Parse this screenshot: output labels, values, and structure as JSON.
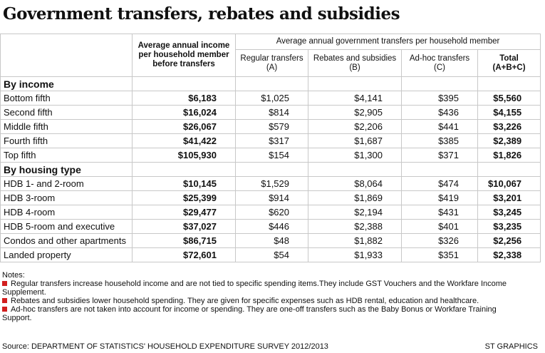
{
  "title": "Government transfers, rebates and subsidies",
  "table": {
    "header": {
      "income": [
        "Average annual income",
        "per household member",
        "before transfers"
      ],
      "group": "Average annual government transfers per household member",
      "columns": [
        [
          "Regular transfers",
          "(A)"
        ],
        [
          "Rebates and subsidies",
          "(B)"
        ],
        [
          "Ad-hoc transfers",
          "(C)"
        ],
        [
          "Total",
          "(A+B+C)"
        ]
      ]
    },
    "sections": [
      {
        "label": "By income",
        "rows": [
          [
            "Bottom fifth",
            "$6,183",
            "$1,025",
            "$4,141",
            "$395",
            "$5,560"
          ],
          [
            "Second fifth",
            "$16,024",
            "$814",
            "$2,905",
            "$436",
            "$4,155"
          ],
          [
            "Middle fifth",
            "$26,067",
            "$579",
            "$2,206",
            "$441",
            "$3,226"
          ],
          [
            "Fourth fifth",
            "$41,422",
            "$317",
            "$1,687",
            "$385",
            "$2,389"
          ],
          [
            "Top fifth",
            "$105,930",
            "$154",
            "$1,300",
            "$371",
            "$1,826"
          ]
        ]
      },
      {
        "label": "By housing type",
        "rows": [
          [
            "HDB 1- and 2-room",
            "$10,145",
            "$1,529",
            "$8,064",
            "$474",
            "$10,067"
          ],
          [
            "HDB 3-room",
            "$25,399",
            "$914",
            "$1,869",
            "$419",
            "$3,201"
          ],
          [
            "HDB 4-room",
            "$29,477",
            "$620",
            "$2,194",
            "$431",
            "$3,245"
          ],
          [
            "HDB 5-room and executive",
            "$37,027",
            "$446",
            "$2,388",
            "$401",
            "$3,235"
          ],
          [
            "Condos and other apartments",
            "$86,715",
            "$48",
            "$1,882",
            "$326",
            "$2,256"
          ],
          [
            "Landed property",
            "$72,601",
            "$54",
            "$1,933",
            "$351",
            "$2,338"
          ]
        ]
      }
    ]
  },
  "notes": {
    "label": "Notes:",
    "items": [
      "Regular transfers increase household income and are not tied to specific spending items.They include GST Vouchers and the Workfare Income Supplement.",
      "Rebates and subsidies lower household spending. They are given for specific expenses such as HDB rental, education and healthcare.",
      "Ad-hoc transfers are not taken into account for income or spending. They are one-off transfers such as the Baby Bonus or Workfare Training Support."
    ]
  },
  "source": "Source: DEPARTMENT OF STATISTICS' HOUSEHOLD EXPENDITURE SURVEY 2012/2013",
  "credit": "ST GRAPHICS"
}
